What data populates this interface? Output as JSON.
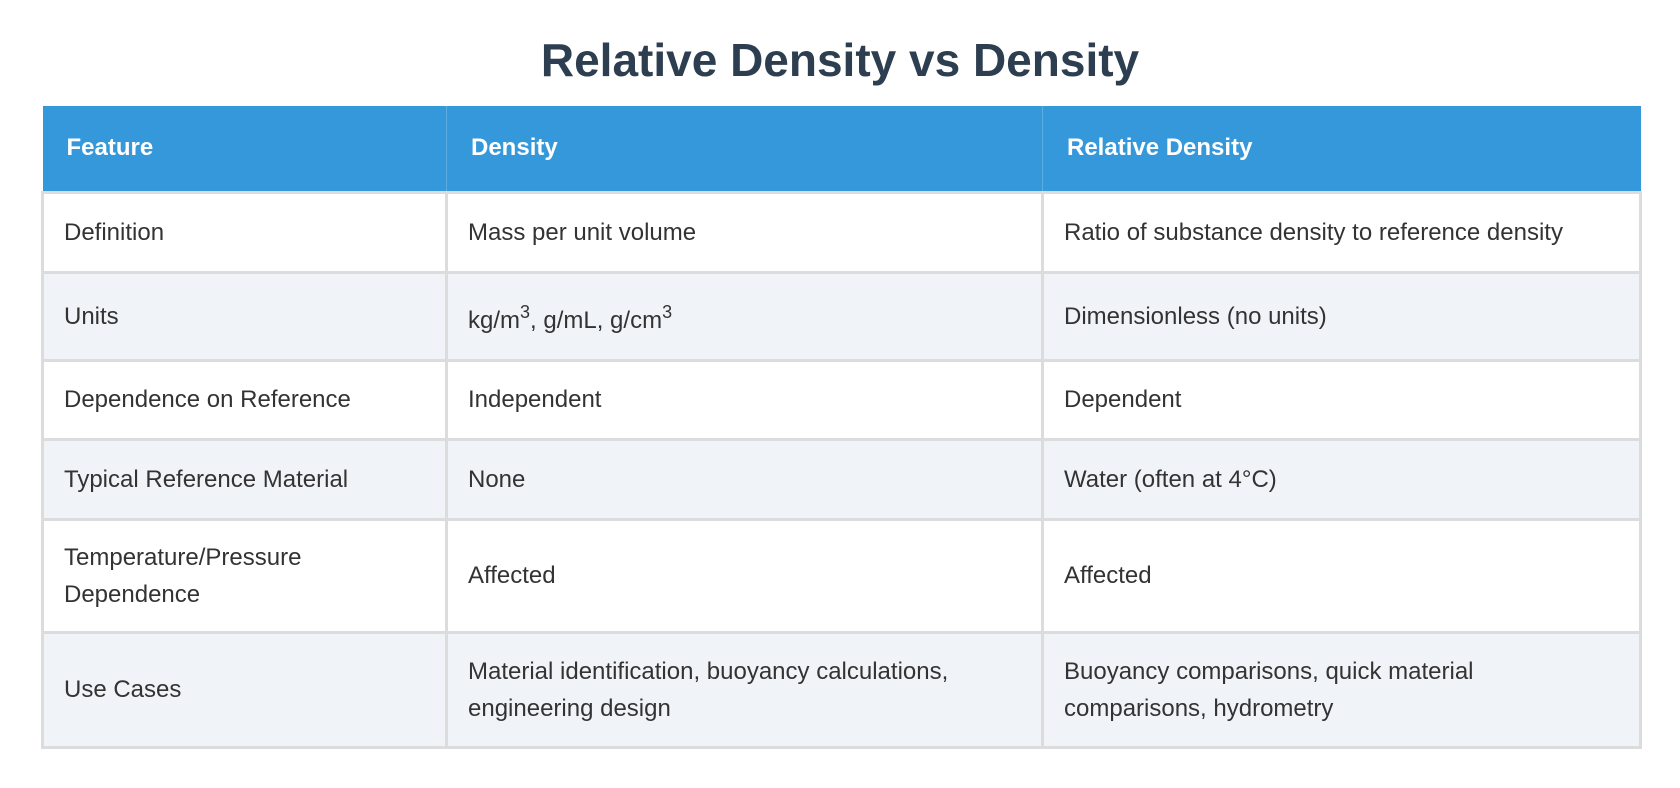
{
  "page": {
    "title": "Relative Density vs Density"
  },
  "colors": {
    "title": "#2c3e50",
    "header_bg": "#3498db",
    "header_text": "#ffffff",
    "row_alt_bg": "#f0f4f9",
    "row_bg": "#ffffff",
    "border": "#dcdcdc",
    "body_text": "#333333"
  },
  "table": {
    "headers": [
      "Feature",
      "Density",
      "Relative Density"
    ],
    "rows": [
      {
        "feature": "Definition",
        "density": "Mass per unit volume",
        "relative_density": "Ratio of substance density to reference density"
      },
      {
        "feature": "Units",
        "density": "kg/m3, g/mL, g/cm3",
        "density_parts": {
          "a": "kg/m",
          "a_sup": "3",
          "b": ", g/mL, g/cm",
          "b_sup": "3"
        },
        "relative_density": "Dimensionless (no units)"
      },
      {
        "feature": "Dependence on Reference",
        "density": "Independent",
        "relative_density": "Dependent"
      },
      {
        "feature": "Typical Reference Material",
        "density": "None",
        "relative_density": "Water (often at 4°C)"
      },
      {
        "feature": "Temperature/Pressure Dependence",
        "density": "Affected",
        "relative_density": "Affected"
      },
      {
        "feature": "Use Cases",
        "density": "Material identification, buoyancy calculations, engineering design",
        "relative_density": "Buoyancy comparisons, quick material comparisons, hydrometry"
      }
    ]
  }
}
